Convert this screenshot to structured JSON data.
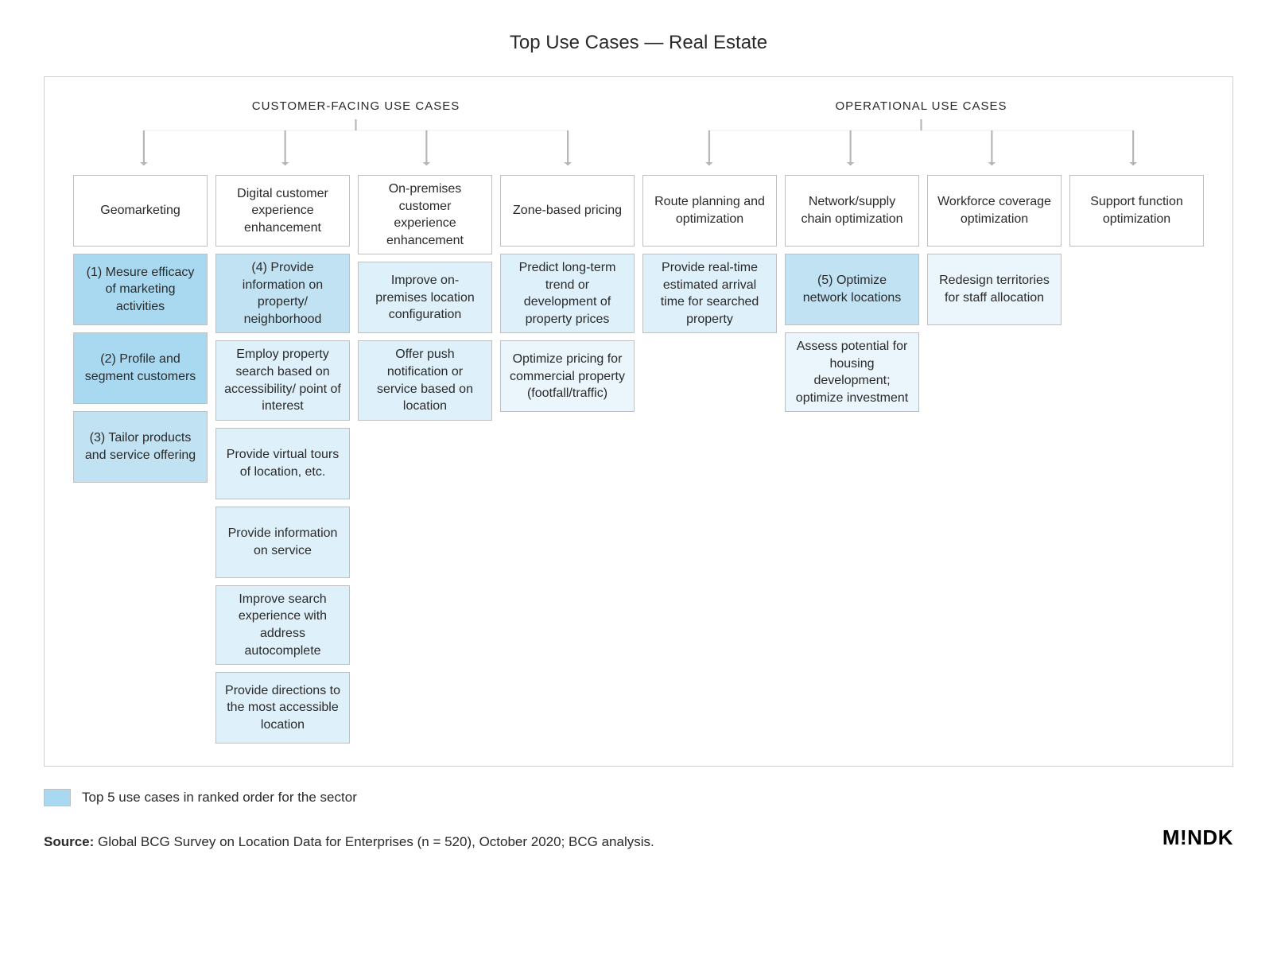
{
  "title": "Top Use Cases — Real Estate",
  "colors": {
    "border": "#bfbfbf",
    "frame_border": "#cfcfcf",
    "text": "#2a2a2a",
    "bg": "#ffffff",
    "connector": "#b5b5b5",
    "highlight_strong": "#a8d9f0",
    "highlight_medium": "#c0e2f3",
    "highlight_light": "#def0fa",
    "highlight_faint": "#eaf5fc"
  },
  "fonts": {
    "title_size": 24,
    "group_header_size": 15,
    "cell_size": 16,
    "legend_size": 17,
    "source_size": 17
  },
  "layout": {
    "columns": 8,
    "cell_min_height": 90,
    "col_gap": 10,
    "frame_padding": [
      28,
      36,
      28,
      36
    ]
  },
  "groups": [
    {
      "label": "CUSTOMER-FACING USE CASES",
      "span": 4
    },
    {
      "label": "OPERATIONAL USE CASES",
      "span": 4
    }
  ],
  "columns": [
    {
      "header": "Geomarketing",
      "items": [
        {
          "text": "(1) Mesure efficacy of marketing activities",
          "shade": "strong"
        },
        {
          "text": "(2) Profile and segment customers",
          "shade": "strong"
        },
        {
          "text": "(3) Tailor products and service offering",
          "shade": "medium"
        }
      ]
    },
    {
      "header": "Digital customer experience enhancement",
      "items": [
        {
          "text": "(4) Provide information on property/ neighborhood",
          "shade": "medium"
        },
        {
          "text": "Employ property search based on accessibility/ point of interest",
          "shade": "light"
        },
        {
          "text": "Provide virtual tours of location, etc.",
          "shade": "light"
        },
        {
          "text": "Provide information on service",
          "shade": "light"
        },
        {
          "text": "Improve search experience with address autocomplete",
          "shade": "light"
        },
        {
          "text": "Provide directions to the most accessible location",
          "shade": "light"
        }
      ]
    },
    {
      "header": "On-premises customer experience enhancement",
      "items": [
        {
          "text": "Improve on-premises location configuration",
          "shade": "light"
        },
        {
          "text": "Offer push notification or service based on location",
          "shade": "light"
        }
      ]
    },
    {
      "header": "Zone-based pricing",
      "items": [
        {
          "text": "Predict long-term trend or development of property prices",
          "shade": "light"
        },
        {
          "text": "Optimize pricing for commercial property (footfall/traffic)",
          "shade": "faint"
        }
      ]
    },
    {
      "header": "Route planning and optimization",
      "items": [
        {
          "text": "Provide real-time estimated arrival time for searched property",
          "shade": "light"
        }
      ]
    },
    {
      "header": "Network/supply chain optimization",
      "items": [
        {
          "text": "(5) Optimize network locations",
          "shade": "medium"
        },
        {
          "text": "Assess potential for housing development; optimize investment",
          "shade": "faint"
        }
      ]
    },
    {
      "header": "Workforce coverage optimization",
      "items": [
        {
          "text": "Redesign territories for staff allocation",
          "shade": "faint"
        }
      ]
    },
    {
      "header": "Support function optimization",
      "items": []
    }
  ],
  "legend": {
    "swatch_color": "#a8d9f0",
    "text": "Top 5 use cases in ranked order for the sector"
  },
  "source": {
    "label": "Source:",
    "text": "Global BCG Survey on Location Data for Enterprises (n = 520), October 2020; BCG analysis."
  },
  "logo": "M!NDK"
}
